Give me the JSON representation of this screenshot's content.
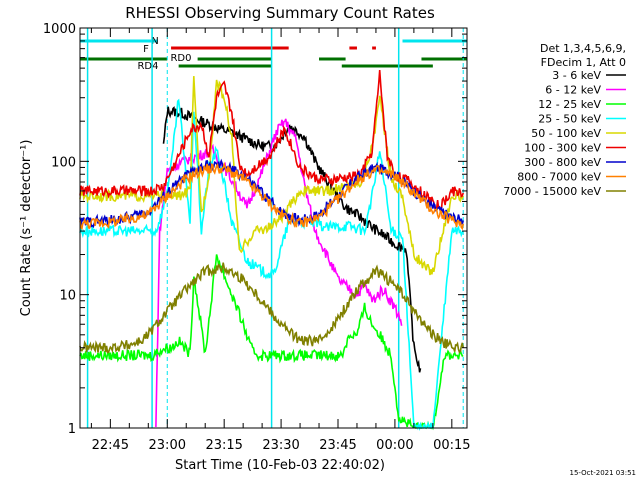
{
  "chart_data": {
    "type": "line",
    "title": "RHESSI Observing Summary Count Rates",
    "xlabel": "Start Time (10-Feb-03 22:40:02)",
    "ylabel": "Count Rate (s⁻¹ detector⁻¹)",
    "yscale": "log",
    "ylim": [
      1,
      1000
    ],
    "xlim_minutes_after_start": [
      -3,
      99
    ],
    "y_tick_labels": [
      "1",
      "10",
      "100",
      "1000"
    ],
    "x_ticks": [
      {
        "t": 5,
        "label": "22:45"
      },
      {
        "t": 20,
        "label": "23:00"
      },
      {
        "t": 35,
        "label": "23:15"
      },
      {
        "t": 50,
        "label": "23:30"
      },
      {
        "t": 65,
        "label": "23:45"
      },
      {
        "t": 80,
        "label": "00:00"
      },
      {
        "t": 95,
        "label": "00:15"
      }
    ],
    "timestamp": "15-Oct-2021 03:51",
    "legend_header": [
      "Det 1,3,4,5,6,9,",
      "FDecim 1, Att 0"
    ],
    "flags": [
      {
        "label": "N",
        "color": "#00e5ee",
        "segments": [
          [
            -3,
            17.5
          ],
          [
            82,
            99
          ]
        ]
      },
      {
        "label": "F",
        "color": "#e00000",
        "segments": [
          [
            21,
            52
          ],
          [
            68,
            70
          ],
          [
            74,
            75
          ]
        ]
      },
      {
        "label": "RD0",
        "color": "#007000",
        "segments": [
          [
            -3,
            20
          ],
          [
            28,
            47.5
          ],
          [
            60,
            67
          ],
          [
            87,
            99
          ]
        ]
      },
      {
        "label": "RD4",
        "color": "#007000",
        "segments": [
          [
            23,
            47.5
          ],
          [
            66,
            90
          ]
        ]
      }
    ],
    "cyan_vlines": [
      -1,
      16,
      47.5,
      81
    ],
    "dashed_vlines": [
      20,
      98
    ],
    "series": [
      {
        "name": "3 - 6 keV",
        "color": "#000000",
        "x": [
          -3,
          16,
          19,
          20,
          24,
          27,
          31,
          34,
          37,
          40,
          45,
          48,
          50,
          52,
          56,
          59,
          62,
          64,
          67,
          71,
          74,
          77,
          80,
          83,
          85,
          87,
          89
        ],
        "y": [
          null,
          null,
          130,
          240,
          230,
          210,
          190,
          175,
          165,
          150,
          130,
          130,
          150,
          185,
          155,
          100,
          72,
          60,
          45,
          38,
          32,
          28,
          24,
          22,
          4,
          2.5,
          null
        ]
      },
      {
        "name": "6 - 12 keV",
        "color": "#ff00ff",
        "x": [
          -3,
          16,
          17,
          18,
          20,
          24,
          28,
          32,
          35,
          38,
          41,
          44,
          47,
          49,
          51,
          54,
          56,
          59,
          62,
          65,
          68,
          70,
          72,
          74,
          77,
          80,
          82,
          85
        ],
        "y": [
          null,
          null,
          1,
          30,
          85,
          100,
          110,
          120,
          90,
          65,
          45,
          70,
          120,
          170,
          200,
          145,
          70,
          30,
          20,
          13,
          11,
          10,
          12,
          9,
          11,
          8,
          6,
          null
        ]
      },
      {
        "name": "12 - 25 keV",
        "color": "#00ff00",
        "x": [
          -3,
          5,
          10,
          16,
          18,
          20,
          21,
          23,
          26,
          27,
          30,
          33,
          35,
          37,
          40,
          42,
          44,
          48,
          50,
          55,
          60,
          63,
          66,
          68,
          70,
          72,
          74,
          76,
          79,
          81,
          85,
          90,
          93,
          96,
          98
        ],
        "y": [
          3.5,
          3.5,
          3.5,
          3.5,
          3.8,
          4,
          4,
          4.5,
          3.6,
          14,
          3.6,
          20,
          14,
          10,
          6,
          4,
          3.5,
          3.5,
          3.5,
          3.5,
          3.5,
          3.5,
          3.5,
          5,
          5,
          8,
          6,
          5,
          3.5,
          1.2,
          1,
          1,
          3.5,
          3.5,
          3.5
        ]
      },
      {
        "name": "25 - 50 keV",
        "color": "#00ffff",
        "x": [
          -3,
          5,
          10,
          16,
          17,
          19,
          21,
          23,
          26,
          27,
          29,
          31,
          33,
          35,
          37,
          39,
          41,
          45,
          48,
          52,
          58,
          62,
          68,
          72,
          74,
          76,
          79,
          82,
          85,
          90,
          95,
          98
        ],
        "y": [
          30,
          30,
          30,
          30,
          30,
          45,
          90,
          300,
          35,
          250,
          30,
          90,
          120,
          70,
          35,
          25,
          18,
          15,
          14,
          35,
          35,
          32,
          33,
          30,
          55,
          120,
          30,
          28,
          1,
          1,
          30,
          30
        ]
      },
      {
        "name": "50 - 100 keV",
        "color": "#d8d800",
        "x": [
          -3,
          5,
          10,
          16,
          18,
          21,
          23,
          26,
          27,
          29,
          31,
          33,
          35,
          37,
          39,
          41,
          43,
          47,
          51,
          55,
          59,
          63,
          67,
          71,
          74,
          76,
          79,
          82,
          85,
          88,
          90,
          95,
          98
        ],
        "y": [
          55,
          55,
          55,
          55,
          55,
          55,
          55,
          60,
          400,
          40,
          80,
          400,
          300,
          150,
          20,
          25,
          30,
          32,
          40,
          60,
          60,
          60,
          65,
          70,
          130,
          300,
          75,
          55,
          20,
          16,
          15,
          55,
          55
        ]
      },
      {
        "name": "100 - 300 keV",
        "color": "#ee0000",
        "x": [
          -3,
          5,
          10,
          16,
          19,
          23,
          26,
          29,
          31,
          33,
          35,
          37,
          39,
          41,
          43,
          47,
          51,
          55,
          59,
          63,
          67,
          71,
          74,
          76,
          78,
          80,
          84,
          88,
          92,
          95,
          98
        ],
        "y": [
          60,
          60,
          60,
          60,
          65,
          110,
          170,
          190,
          110,
          300,
          370,
          230,
          95,
          80,
          90,
          110,
          175,
          90,
          75,
          72,
          75,
          80,
          120,
          450,
          110,
          80,
          70,
          55,
          45,
          60,
          58
        ]
      },
      {
        "name": "300 - 800 keV",
        "color": "#0000cc",
        "x": [
          -3,
          5,
          10,
          15,
          20,
          25,
          30,
          35,
          40,
          45,
          50,
          55,
          60,
          65,
          70,
          75,
          80,
          85,
          90,
          95,
          98
        ],
        "y": [
          35,
          36,
          38,
          42,
          58,
          78,
          92,
          92,
          78,
          58,
          42,
          36,
          40,
          55,
          75,
          90,
          80,
          60,
          45,
          38,
          36
        ]
      },
      {
        "name": "800 - 7000 keV",
        "color": "#ff8000",
        "x": [
          -3,
          5,
          10,
          15,
          20,
          25,
          30,
          35,
          40,
          45,
          50,
          55,
          60,
          65,
          70,
          75,
          80,
          85,
          90,
          95,
          98
        ],
        "y": [
          34,
          35,
          37,
          40,
          55,
          74,
          88,
          88,
          74,
          55,
          40,
          34,
          38,
          52,
          72,
          86,
          78,
          58,
          43,
          36,
          34
        ]
      },
      {
        "name": "7000 - 15000 keV",
        "color": "#808000",
        "x": [
          -3,
          5,
          10,
          13,
          15,
          20,
          25,
          30,
          35,
          40,
          45,
          50,
          55,
          60,
          65,
          70,
          75,
          80,
          85,
          90,
          95,
          98
        ],
        "y": [
          4,
          4,
          4.2,
          4.5,
          5,
          7.5,
          11,
          15,
          16,
          13,
          9,
          6,
          4.5,
          4.5,
          6.5,
          11,
          15,
          12,
          7.5,
          5,
          4,
          4
        ]
      }
    ]
  }
}
